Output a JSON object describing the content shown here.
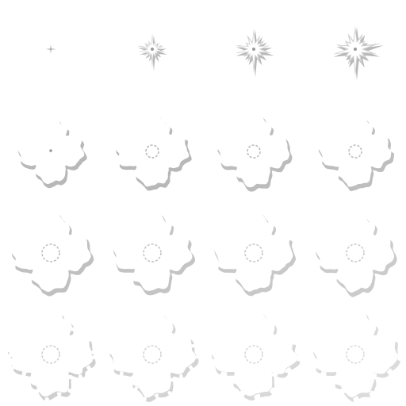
{
  "sprite_sheet": {
    "background": "#ffffff",
    "colors": {
      "fill": "#ffffff",
      "shadow": "#b8b8b8",
      "midtone": "#d2d2d2",
      "dark": "#9a9a9a"
    },
    "columns": 4,
    "rows": 4,
    "frames": [
      {
        "index": 1,
        "stage": "spark",
        "fade": 0
      },
      {
        "index": 2,
        "stage": "burst-small",
        "fade": 0
      },
      {
        "index": 3,
        "stage": "burst-medium",
        "fade": 0
      },
      {
        "index": 4,
        "stage": "burst-large",
        "fade": 0
      },
      {
        "index": 5,
        "stage": "cloud",
        "fade": 0
      },
      {
        "index": 6,
        "stage": "cloud-ring",
        "fade": 0
      },
      {
        "index": 7,
        "stage": "cloud-ring",
        "fade": 0.1
      },
      {
        "index": 8,
        "stage": "cloud-ring",
        "fade": 0.15
      },
      {
        "index": 9,
        "stage": "cloud-open",
        "fade": 0.2
      },
      {
        "index": 10,
        "stage": "cloud-open",
        "fade": 0.3
      },
      {
        "index": 11,
        "stage": "cloud-open",
        "fade": 0.4
      },
      {
        "index": 12,
        "stage": "cloud-open",
        "fade": 0.5
      },
      {
        "index": 13,
        "stage": "dissipate",
        "fade": 0.6
      },
      {
        "index": 14,
        "stage": "dissipate",
        "fade": 0.7
      },
      {
        "index": 15,
        "stage": "dissipate",
        "fade": 0.82
      },
      {
        "index": 16,
        "stage": "dissipate",
        "fade": 0.9
      }
    ]
  }
}
